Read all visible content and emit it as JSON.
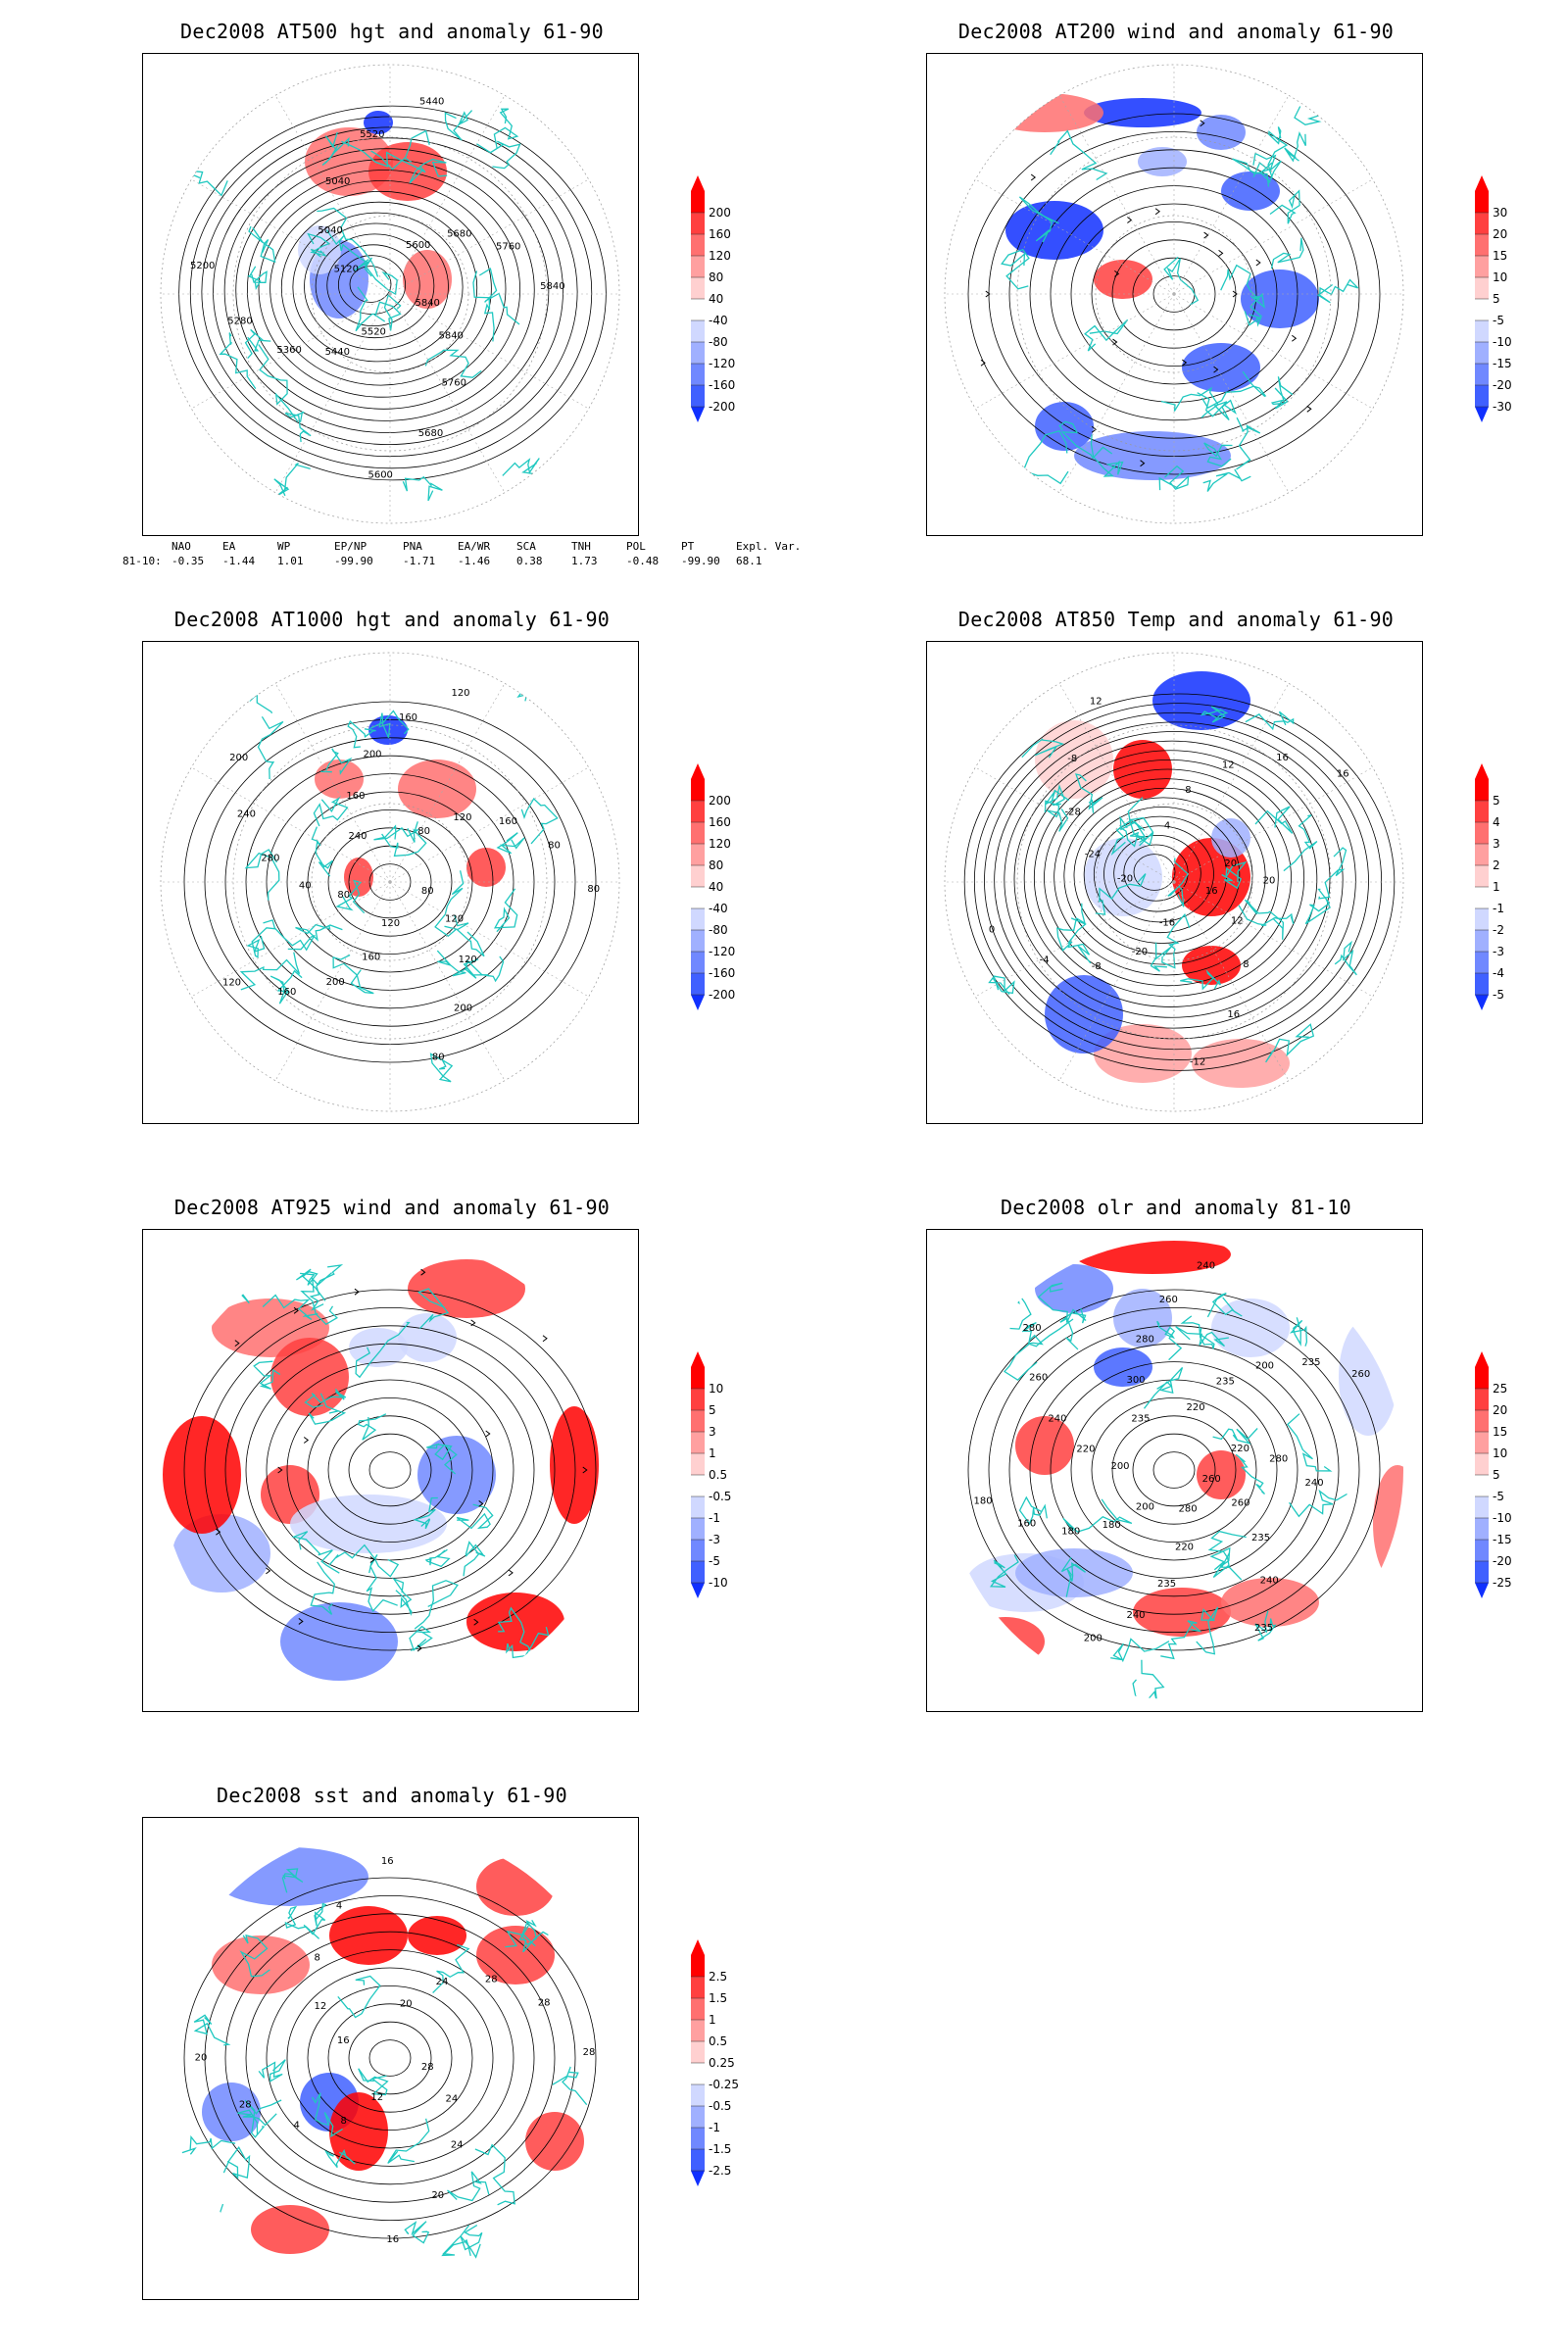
{
  "panels": [
    {
      "id": "p1",
      "title": "Dec2008 AT500 hgt and anomaly 61-90",
      "colorbar": [
        "200",
        "160",
        "120",
        "80",
        "40",
        "-40",
        "-80",
        "-120",
        "-160",
        "-200"
      ],
      "contour_labels": [
        "5840",
        "5840",
        "5760",
        "5680",
        "5600",
        "5520",
        "5440",
        "5360",
        "5280",
        "5200",
        "5120",
        "5040",
        "5040",
        "5520",
        "5440",
        "5600",
        "5680",
        "5760",
        "5840"
      ]
    },
    {
      "id": "p2",
      "title": "Dec2008 AT200 wind and anomaly 61-90",
      "colorbar": [
        "30",
        "20",
        "15",
        "10",
        "5",
        "-5",
        "-10",
        "-15",
        "-20",
        "-30"
      ],
      "contour_labels": []
    },
    {
      "id": "p3",
      "title": "Dec2008 AT1000 hgt and anomaly 61-90",
      "colorbar": [
        "200",
        "160",
        "120",
        "80",
        "40",
        "-40",
        "-80",
        "-120",
        "-160",
        "-200"
      ],
      "contour_labels": [
        "80",
        "120",
        "120",
        "200",
        "80",
        "120",
        "160",
        "200",
        "160",
        "120",
        "80",
        "40",
        "280",
        "240",
        "200",
        "240",
        "160",
        "200",
        "160",
        "120",
        "80",
        "120",
        "160",
        "80",
        "80"
      ]
    },
    {
      "id": "p4",
      "title": "Dec2008 AT850 Temp and anomaly 61-90",
      "colorbar": [
        "5",
        "4",
        "3",
        "2",
        "1",
        "-1",
        "-2",
        "-3",
        "-4",
        "-5"
      ],
      "contour_labels": [
        "16",
        "12",
        "8",
        "16",
        "-12",
        "-16",
        "-20",
        "-8",
        "-4",
        "0",
        "-20",
        "-24",
        "-28",
        "-8",
        "12",
        "4",
        "8",
        "12",
        "16",
        "16",
        "20",
        "20"
      ]
    },
    {
      "id": "p5",
      "title": "Dec2008 AT925 wind and anomaly 61-90",
      "colorbar": [
        "10",
        "5",
        "3",
        "1",
        "0.5",
        "-0.5",
        "-1",
        "-3",
        "-5",
        "-10"
      ],
      "contour_labels": []
    },
    {
      "id": "p6",
      "title": "Dec2008 olr and anomaly 81-10",
      "colorbar": [
        "25",
        "20",
        "15",
        "10",
        "5",
        "-5",
        "-10",
        "-15",
        "-20",
        "-25"
      ],
      "contour_labels": [
        "260",
        "260",
        "235",
        "240",
        "235",
        "280",
        "220",
        "235",
        "240",
        "200",
        "200",
        "180",
        "180",
        "160",
        "180",
        "200",
        "220",
        "240",
        "260",
        "280",
        "235",
        "300",
        "280",
        "260",
        "240",
        "220",
        "235",
        "200",
        "235",
        "260",
        "220",
        "280",
        "240"
      ]
    },
    {
      "id": "p7",
      "title": "Dec2008 sst and anomaly 61-90",
      "colorbar": [
        "2.5",
        "1.5",
        "1",
        "0.5",
        "0.25",
        "-0.25",
        "-0.5",
        "-1",
        "-1.5",
        "-2.5"
      ],
      "contour_labels": [
        "28",
        "24",
        "24",
        "20",
        "16",
        "12",
        "8",
        "4",
        "28",
        "20",
        "16",
        "12",
        "8",
        "4",
        "16",
        "20",
        "24",
        "28",
        "28",
        "28"
      ]
    }
  ],
  "teleconnection_table": {
    "headers": [
      "NAO",
      "EA",
      "WP",
      "EP/NP",
      "PNA",
      "EA/WR",
      "SCA",
      "TNH",
      "POL",
      "PT",
      "Expl. Var."
    ],
    "row_label": "81-10:",
    "values": [
      "-0.35",
      "-1.44",
      "1.01",
      "-99.90",
      "-1.71",
      "-1.46",
      "0.38",
      "1.73",
      "-0.48",
      "-99.90",
      "68.1"
    ]
  },
  "colors": {
    "red_scale": [
      "#ff0000",
      "#ff4040",
      "#ff7070",
      "#ffa0a0",
      "#ffd0d0"
    ],
    "blue_scale": [
      "#d0d8ff",
      "#a0b0ff",
      "#7088ff",
      "#4060ff",
      "#1030ff"
    ],
    "coastline": "#20c8c0"
  }
}
